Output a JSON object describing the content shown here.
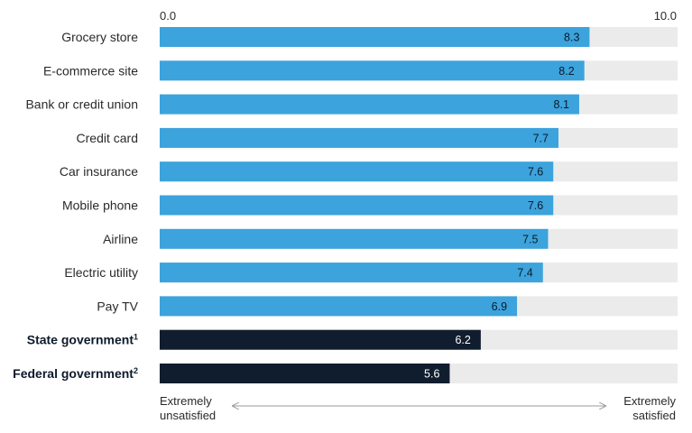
{
  "chart_data": {
    "type": "bar",
    "orientation": "horizontal",
    "axis_min_label": "0.0",
    "axis_max_label": "10.0",
    "xlim": [
      0,
      10
    ],
    "categories": [
      {
        "label": "Grocery store",
        "value": 8.3,
        "value_label": "8.3",
        "emphasis": false
      },
      {
        "label": "E-commerce site",
        "value": 8.2,
        "value_label": "8.2",
        "emphasis": false
      },
      {
        "label": "Bank or credit union",
        "value": 8.1,
        "value_label": "8.1",
        "emphasis": false
      },
      {
        "label": "Credit card",
        "value": 7.7,
        "value_label": "7.7",
        "emphasis": false
      },
      {
        "label": "Car insurance",
        "value": 7.6,
        "value_label": "7.6",
        "emphasis": false
      },
      {
        "label": "Mobile phone",
        "value": 7.6,
        "value_label": "7.6",
        "emphasis": false
      },
      {
        "label": "Airline",
        "value": 7.5,
        "value_label": "7.5",
        "emphasis": false
      },
      {
        "label": "Electric utility",
        "value": 7.4,
        "value_label": "7.4",
        "emphasis": false
      },
      {
        "label": "Pay TV",
        "value": 6.9,
        "value_label": "6.9",
        "emphasis": false
      },
      {
        "label": "State government",
        "footnote": "1",
        "value": 6.2,
        "value_label": "6.2",
        "emphasis": true
      },
      {
        "label": "Federal government",
        "footnote": "2",
        "value": 5.6,
        "value_label": "5.6",
        "emphasis": true
      }
    ],
    "colors": {
      "bar": "#3ca3dc",
      "bar_emphasis": "#101d2e",
      "track": "#ebebeb",
      "label_on_bar": "#0d1a2b",
      "label_on_bar_emphasis": "#ffffff"
    },
    "scale_labels": {
      "left_line1": "Extremely",
      "left_line2": "unsatisfied",
      "right_line1": "Extremely",
      "right_line2": "satisfied"
    },
    "grid": false,
    "legend": "none"
  }
}
